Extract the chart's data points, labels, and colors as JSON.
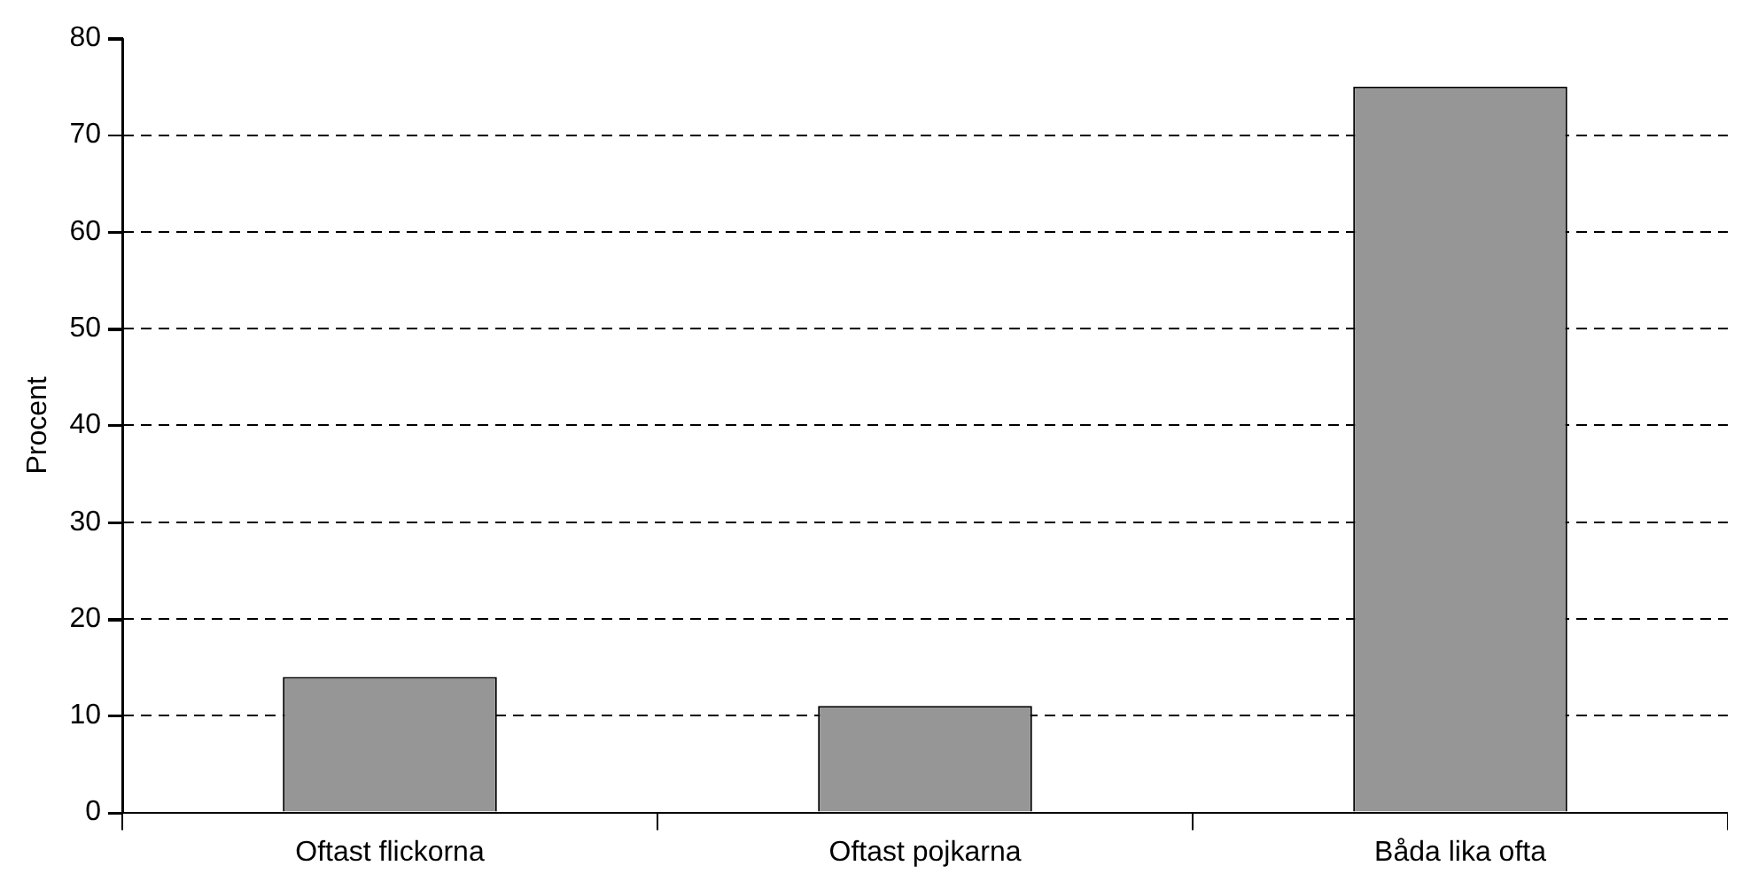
{
  "chart_data": {
    "type": "bar",
    "ylabel": "Procent",
    "categories": [
      "Oftast flickorna",
      "Oftast pojkarna",
      "Båda lika ofta"
    ],
    "values": [
      14,
      11,
      75
    ],
    "color": "#969696",
    "ylim": [
      0,
      80
    ],
    "yticks": [
      0,
      10,
      20,
      30,
      40,
      50,
      60,
      70,
      80
    ],
    "grid": "y",
    "legend": false
  }
}
